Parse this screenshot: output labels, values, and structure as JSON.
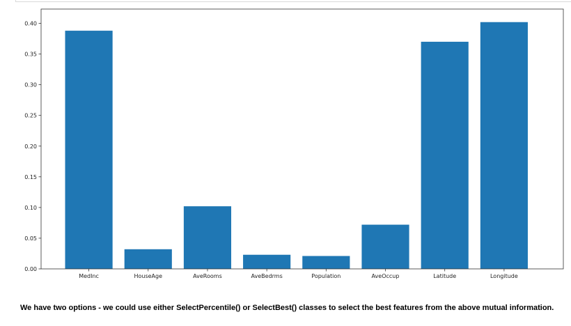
{
  "chart_data": {
    "type": "bar",
    "categories": [
      "MedInc",
      "HouseAge",
      "AveRooms",
      "AveBedrms",
      "Population",
      "AveOccup",
      "Latitude",
      "Longitude"
    ],
    "values": [
      0.388,
      0.032,
      0.102,
      0.023,
      0.021,
      0.072,
      0.37,
      0.402
    ],
    "ylim": [
      0,
      0.42
    ],
    "yticks": [
      "0.00",
      "0.05",
      "0.10",
      "0.15",
      "0.20",
      "0.25",
      "0.30",
      "0.35",
      "0.40"
    ],
    "bar_color": "#1f77b4",
    "grid": false,
    "title": "",
    "xlabel": "",
    "ylabel": ""
  },
  "notebook": {
    "markdown_text": "We have two options - we could use either SelectPercentile() or SelectBest() classes to select the best features from the above mutual information."
  }
}
